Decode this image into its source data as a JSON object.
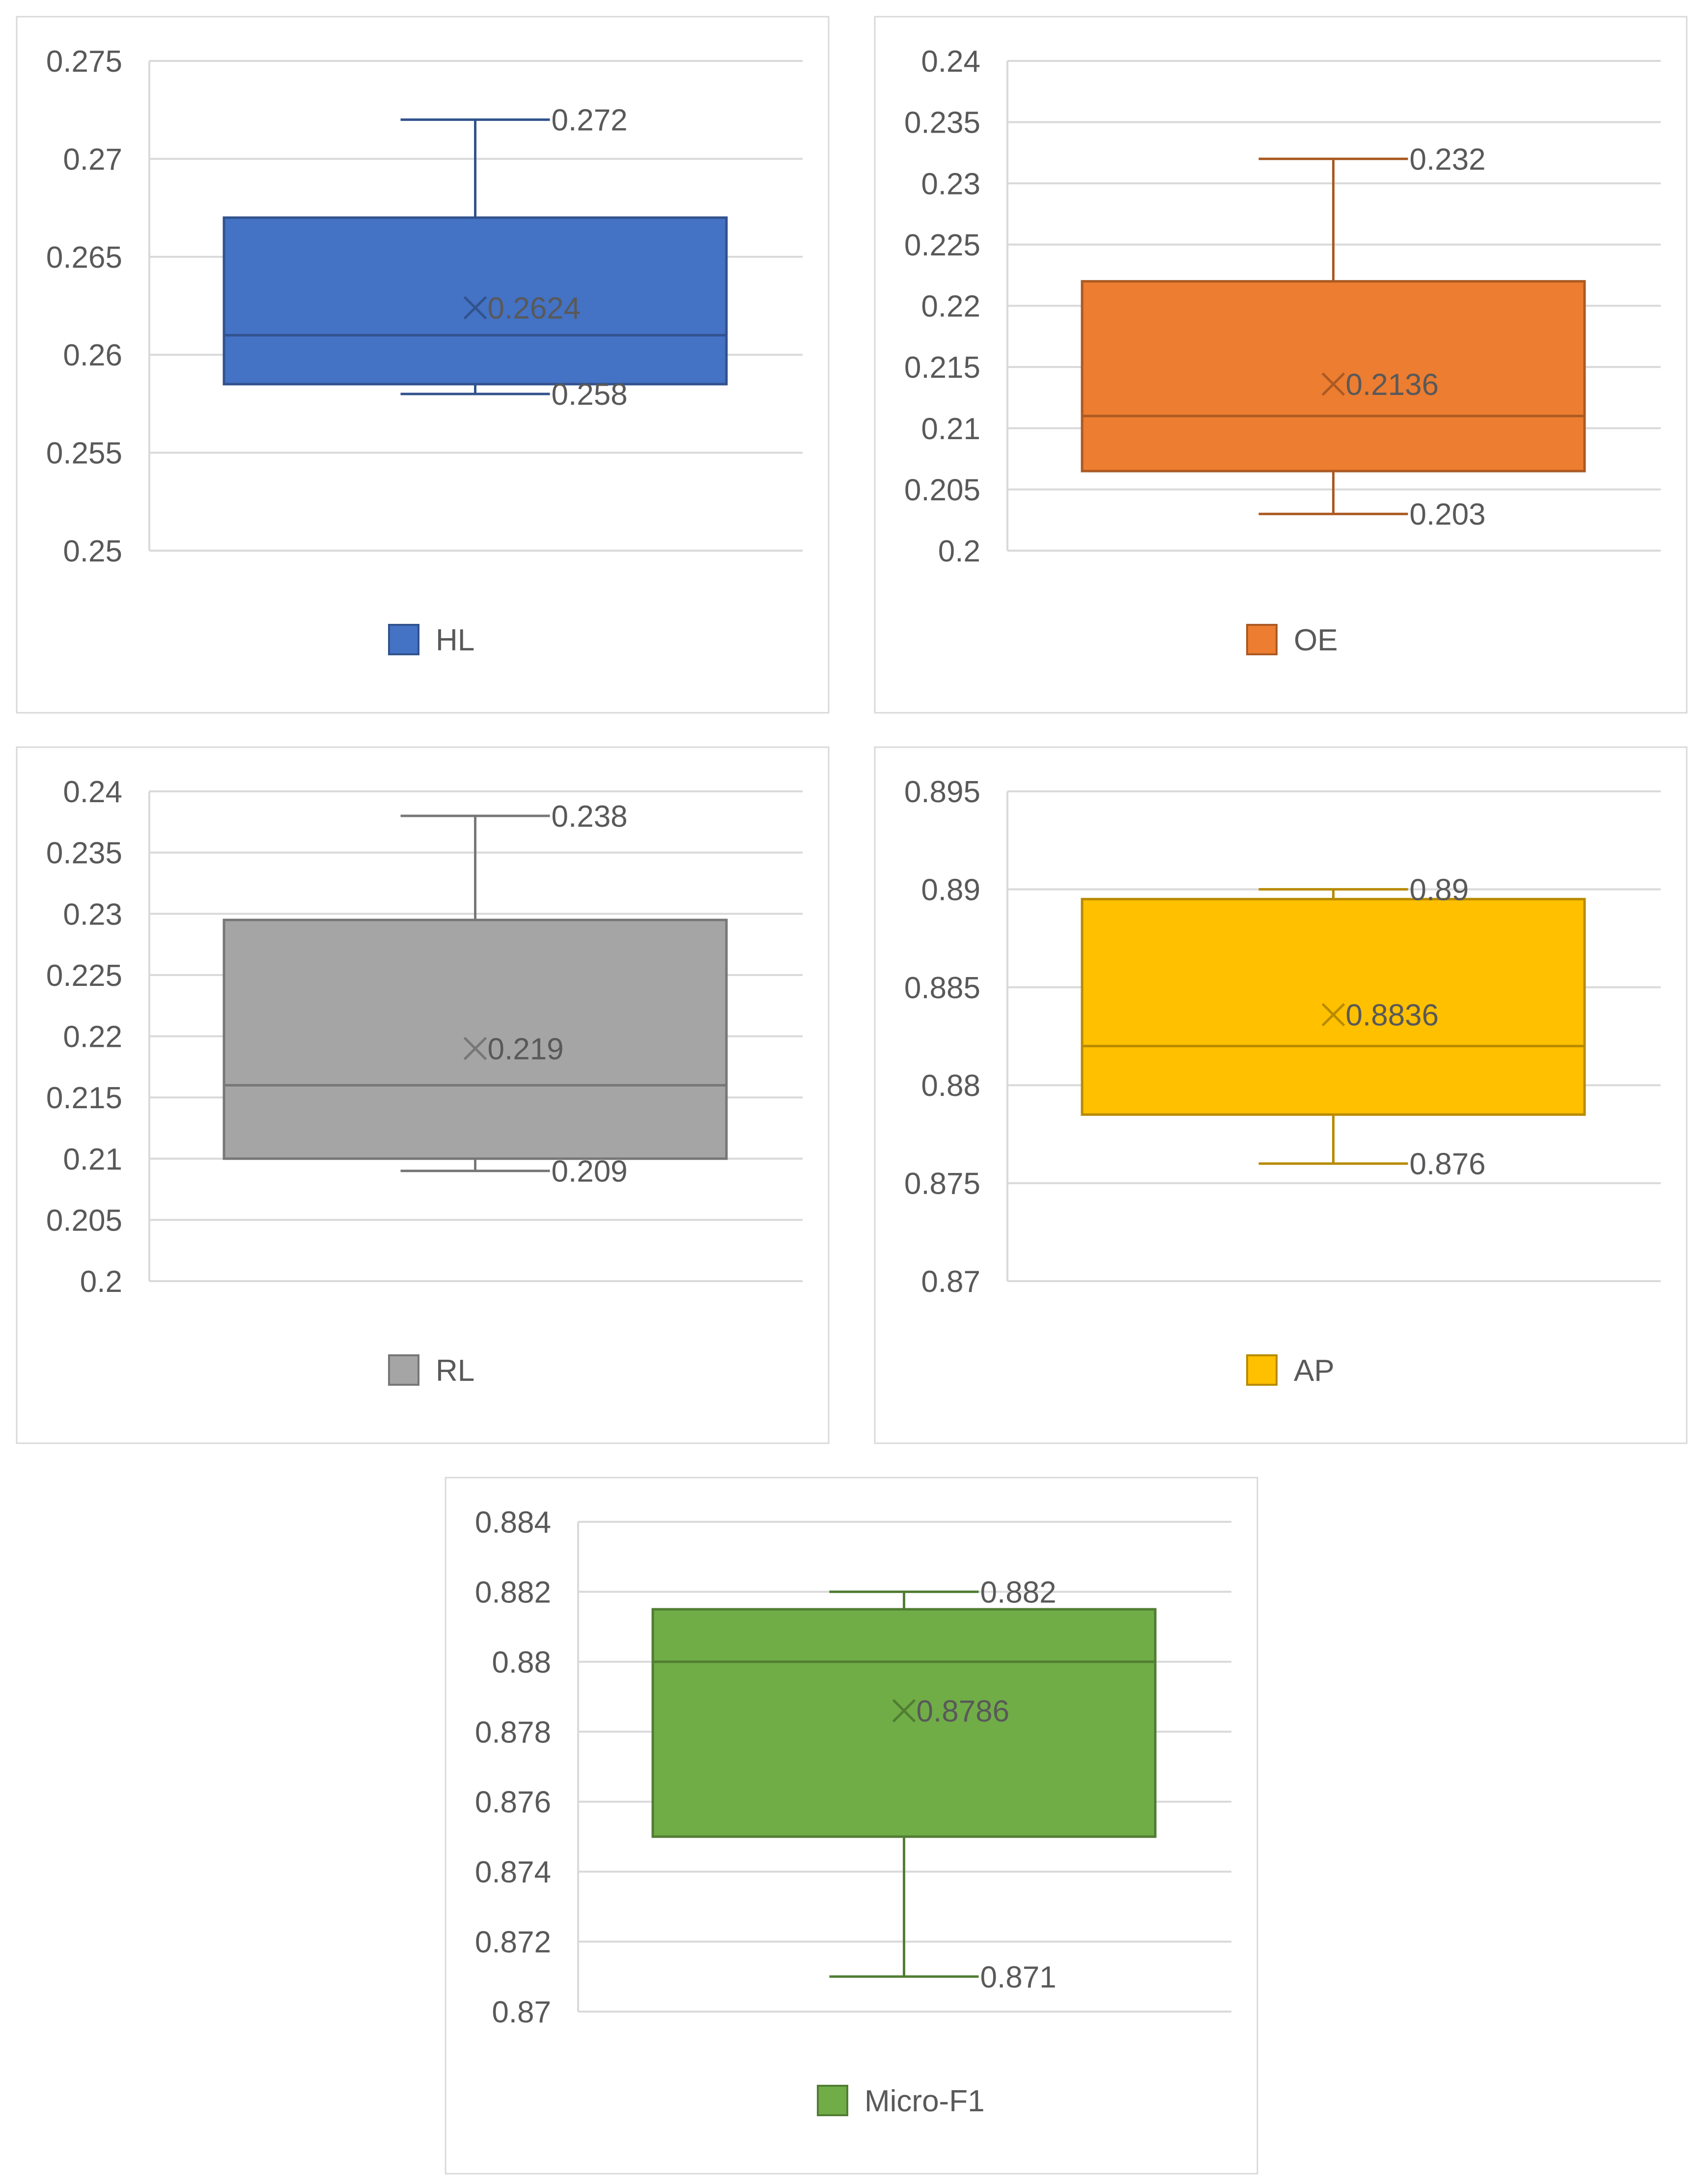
{
  "chart_data": [
    {
      "type": "box",
      "legend": "HL",
      "color": "#4472C4",
      "ylim": [
        0.25,
        0.275
      ],
      "ticks": [
        "0.275",
        "0.27",
        "0.265",
        "0.26",
        "0.255",
        "0.25"
      ],
      "whisker_max": 0.272,
      "q3": 0.267,
      "median": 0.261,
      "mean": 0.2624,
      "q1": 0.2585,
      "whisker_min": 0.258,
      "labels": {
        "max": "0.272",
        "mean": "0.2624",
        "min": "0.258"
      }
    },
    {
      "type": "box",
      "legend": "OE",
      "color": "#ED7D31",
      "ylim": [
        0.2,
        0.24
      ],
      "ticks": [
        "0.24",
        "0.235",
        "0.23",
        "0.225",
        "0.22",
        "0.215",
        "0.21",
        "0.205",
        "0.2"
      ],
      "whisker_max": 0.232,
      "q3": 0.222,
      "median": 0.211,
      "mean": 0.2136,
      "q1": 0.2065,
      "whisker_min": 0.203,
      "labels": {
        "max": "0.232",
        "mean": "0.2136",
        "min": "0.203"
      }
    },
    {
      "type": "box",
      "legend": "RL",
      "color": "#A5A5A5",
      "ylim": [
        0.2,
        0.24
      ],
      "ticks": [
        "0.24",
        "0.235",
        "0.23",
        "0.225",
        "0.22",
        "0.215",
        "0.21",
        "0.205",
        "0.2"
      ],
      "whisker_max": 0.238,
      "q3": 0.2295,
      "median": 0.216,
      "mean": 0.219,
      "q1": 0.21,
      "whisker_min": 0.209,
      "labels": {
        "max": "0.238",
        "mean": "0.219",
        "min": "0.209"
      }
    },
    {
      "type": "box",
      "legend": "AP",
      "color": "#FFC000",
      "ylim": [
        0.87,
        0.895
      ],
      "ticks": [
        "0.895",
        "0.89",
        "0.885",
        "0.88",
        "0.875",
        "0.87"
      ],
      "whisker_max": 0.89,
      "q3": 0.8895,
      "median": 0.882,
      "mean": 0.8836,
      "q1": 0.8785,
      "whisker_min": 0.876,
      "labels": {
        "max": "0.89",
        "mean": "0.8836",
        "min": "0.876"
      }
    },
    {
      "type": "box",
      "legend": "Micro-F1",
      "color": "#70AD47",
      "ylim": [
        0.87,
        0.884
      ],
      "ticks": [
        "0.884",
        "0.882",
        "0.88",
        "0.878",
        "0.876",
        "0.874",
        "0.872",
        "0.87"
      ],
      "whisker_max": 0.882,
      "q3": 0.8815,
      "median": 0.88,
      "mean": 0.8786,
      "q1": 0.875,
      "whisker_min": 0.871,
      "labels": {
        "max": "0.882",
        "mean": "0.8786",
        "min": "0.871"
      }
    }
  ]
}
